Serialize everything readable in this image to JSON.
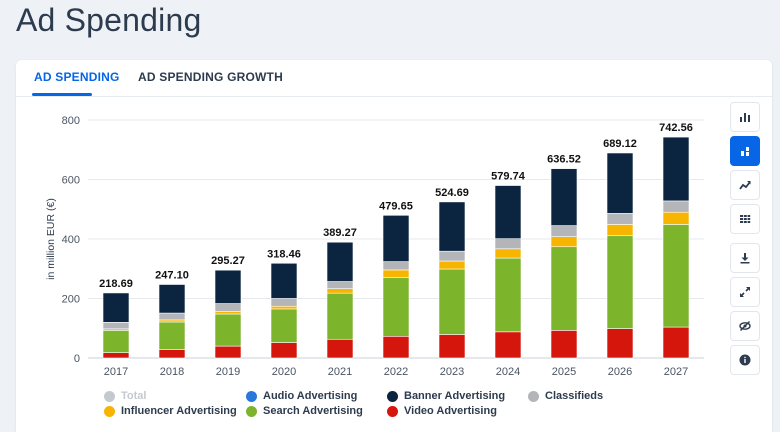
{
  "page": {
    "title": "Ad Spending"
  },
  "tabs": [
    {
      "label": "AD SPENDING"
    },
    {
      "label": "AD SPENDING GROWTH"
    }
  ],
  "toolbar": {
    "icons": [
      "bar-chart-icon",
      "stacked-bar-icon",
      "trend-line-icon",
      "table-icon",
      "download-icon",
      "fullscreen-icon",
      "hide-icon",
      "info-icon"
    ]
  },
  "chart_data": {
    "type": "bar",
    "stacked": true,
    "ylabel": "in million EUR (€)",
    "xlabel": "",
    "ylim": [
      0,
      800
    ],
    "yticks": [
      0,
      200,
      400,
      600,
      800
    ],
    "grid": true,
    "categories": [
      "2017",
      "2018",
      "2019",
      "2020",
      "2021",
      "2022",
      "2023",
      "2024",
      "2025",
      "2026",
      "2027"
    ],
    "totals_labels": [
      "218.69",
      "247.10",
      "295.27",
      "318.46",
      "389.27",
      "479.65",
      "524.69",
      "579.74",
      "636.52",
      "689.12",
      "742.56"
    ],
    "series": [
      {
        "name": "Video Advertising",
        "color": "#d4160c",
        "values": [
          18,
          28,
          40,
          52,
          63,
          73,
          79,
          88,
          93,
          99,
          104
        ]
      },
      {
        "name": "Search Advertising",
        "color": "#7cb42b",
        "values": [
          75,
          93,
          108,
          113,
          155,
          197,
          220,
          248,
          281,
          312,
          345
        ]
      },
      {
        "name": "Influencer Advertising",
        "color": "#f7b500",
        "values": [
          5,
          7,
          9,
          9,
          15,
          26,
          27,
          31,
          34,
          38,
          41
        ]
      },
      {
        "name": "Classifieds",
        "color": "#b3b5b8",
        "values": [
          22,
          23,
          26,
          26,
          24,
          28,
          33,
          34,
          37,
          37,
          38
        ]
      },
      {
        "name": "Audio Advertising",
        "color": "#2878d8",
        "values": [
          0,
          0,
          0,
          0,
          0,
          0,
          0,
          0,
          0,
          0,
          0
        ]
      },
      {
        "name": "Banner Advertising",
        "color": "#0b2440",
        "values": [
          98.69,
          96.1,
          112.27,
          118.46,
          132.27,
          155.65,
          165.69,
          178.74,
          191.52,
          203.12,
          214.56
        ]
      }
    ],
    "legend": [
      {
        "name": "Total",
        "color": "#c4c9d0",
        "disabled": true
      },
      {
        "name": "Audio Advertising",
        "color": "#2878d8"
      },
      {
        "name": "Banner Advertising",
        "color": "#0b2440"
      },
      {
        "name": "Classifieds",
        "color": "#b3b5b8"
      },
      {
        "name": "Influencer Advertising",
        "color": "#f7b500"
      },
      {
        "name": "Search Advertising",
        "color": "#7cb42b"
      },
      {
        "name": "Video Advertising",
        "color": "#d4160c"
      }
    ],
    "legend_position": "bottom"
  }
}
